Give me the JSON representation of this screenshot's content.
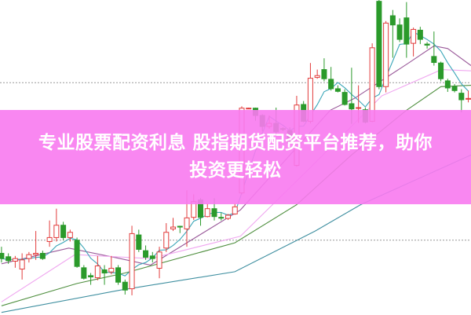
{
  "banner": {
    "line1": "专业股票配资利息 股指期货配资平台推荐，助你",
    "line2": "投资更轻松"
  },
  "chart_data": {
    "type": "candlestick",
    "title": "",
    "xlabel": "",
    "ylabel": "",
    "ylim": [
      0,
      120
    ],
    "grid": true,
    "gridlines": [
      88.5,
      28.5
    ],
    "colors": {
      "up": "#e23c3c",
      "down": "#2b9a2b",
      "ma5": "#3aa6b8",
      "ma10": "#9a5a9a",
      "ma20": "#f0a8f0",
      "ma30": "#4f8f3f",
      "ma60": "#3f8fa0",
      "banner": "#f87af0"
    },
    "candles": [
      [
        23.5,
        26,
        20,
        21.5
      ],
      [
        22.2,
        23.5,
        19.5,
        20.7
      ],
      [
        20.5,
        22.5,
        18,
        21.5
      ],
      [
        17.5,
        23.5,
        13.5,
        21
      ],
      [
        21.5,
        24,
        20,
        23
      ],
      [
        23,
        32,
        21,
        23.5
      ],
      [
        23.5,
        24.5,
        21,
        21.5
      ],
      [
        28,
        36,
        26,
        29.5
      ],
      [
        29.5,
        40.5,
        28,
        34.2
      ],
      [
        34.2,
        35.5,
        28.5,
        29.5
      ],
      [
        29.5,
        32.5,
        28,
        31.5
      ],
      [
        28.5,
        29.5,
        18,
        18.5
      ],
      [
        18,
        19,
        13.5,
        14
      ],
      [
        15,
        16,
        11.5,
        14.5
      ],
      [
        14.2,
        22.5,
        13.2,
        18.7
      ],
      [
        17.2,
        19,
        11.5,
        16
      ],
      [
        16.4,
        22.5,
        15.5,
        17.8
      ],
      [
        18,
        19,
        11.5,
        12.5
      ],
      [
        12.5,
        13.5,
        7.8,
        9.5
      ],
      [
        10,
        34,
        7.5,
        31
      ],
      [
        30.5,
        32.5,
        24,
        25
      ],
      [
        24.5,
        26.5,
        21,
        22
      ],
      [
        22.5,
        24,
        20,
        21.5
      ],
      [
        17.8,
        26,
        14,
        24
      ],
      [
        25.5,
        35,
        24,
        31.5
      ],
      [
        32.8,
        37,
        32,
        33.5
      ],
      [
        33.8,
        34,
        31.2,
        33.5
      ],
      [
        32.8,
        47.5,
        26,
        37
      ],
      [
        37.2,
        46,
        36.2,
        43.2
      ],
      [
        43.8,
        44.5,
        34,
        37.2
      ],
      [
        37.5,
        42.5,
        37.2,
        40.5
      ],
      [
        40.5,
        44.5,
        36,
        37.5
      ],
      [
        37.2,
        39,
        36,
        37
      ],
      [
        36.8,
        38.5,
        36.2,
        38
      ],
      [
        38.5,
        42.5,
        38.2,
        41.2
      ],
      [
        46.5,
        79.5,
        46,
        78.8
      ],
      [
        78.7,
        79,
        78.6,
        78.8
      ],
      [
        78.8,
        79,
        74,
        76
      ],
      [
        76,
        76.5,
        70,
        71.8
      ],
      [
        71.8,
        76,
        71,
        73
      ],
      [
        73,
        79,
        68.5,
        69.8
      ],
      [
        71,
        71.5,
        70,
        70.8
      ],
      [
        70.2,
        71.5,
        64,
        65.5
      ],
      [
        57,
        83.5,
        56.5,
        80
      ],
      [
        80.2,
        81.5,
        73.5,
        73.8
      ],
      [
        73.8,
        96,
        73,
        90.2
      ],
      [
        90.5,
        93.5,
        90,
        91.2
      ],
      [
        93.5,
        97.8,
        89,
        90
      ],
      [
        89.8,
        94.5,
        85.5,
        86.2
      ],
      [
        86.2,
        87.5,
        84.8,
        85.2
      ],
      [
        84.8,
        86,
        79.8,
        80.2
      ],
      [
        80.5,
        94.2,
        72.8,
        78.5
      ],
      [
        78.7,
        87.5,
        73.2,
        79
      ],
      [
        78.2,
        79,
        73,
        73.5
      ],
      [
        73.8,
        103.5,
        73.5,
        101.8
      ],
      [
        119.5,
        120,
        86,
        87
      ],
      [
        87,
        112,
        84.8,
        111.2
      ],
      [
        114,
        116.2,
        98,
        110.5
      ],
      [
        110.5,
        113,
        104,
        105
      ],
      [
        113.2,
        119.2,
        98,
        103.2
      ],
      [
        103.5,
        109.5,
        98.5,
        108.8
      ],
      [
        108.5,
        109.8,
        103.2,
        105
      ],
      [
        103.2,
        104,
        101.5,
        102.8
      ],
      [
        98.5,
        108,
        95,
        96.2
      ],
      [
        96,
        96.5,
        89,
        90
      ],
      [
        89.2,
        90,
        85,
        86.5
      ],
      [
        87,
        88,
        84.8,
        85.5
      ],
      [
        84.5,
        86,
        77.2,
        82
      ],
      [
        82.2,
        85.5,
        81,
        82.5
      ]
    ],
    "moving_averages": {
      "ma10": [
        [
          0,
          19.5
        ],
        [
          9.8,
          25.5
        ],
        [
          17.3,
          21.5
        ],
        [
          21.7,
          19
        ],
        [
          34.8,
          40
        ],
        [
          47.9,
          78
        ],
        [
          51.4,
          82.5
        ],
        [
          59.3,
          96
        ],
        [
          63,
          102.5
        ],
        [
          65,
          101.5
        ],
        [
          68.4,
          95
        ]
      ],
      "ma20": [
        [
          0,
          5
        ],
        [
          10.7,
          23
        ],
        [
          21.7,
          21.5
        ],
        [
          34.8,
          30
        ],
        [
          45.7,
          58
        ],
        [
          55.4,
          83.5
        ],
        [
          64.1,
          93.5
        ],
        [
          68.4,
          93
        ]
      ],
      "ma30": [
        [
          0,
          3.5
        ],
        [
          11,
          12
        ],
        [
          18,
          16
        ],
        [
          34,
          27.5
        ],
        [
          43,
          42
        ],
        [
          51,
          61
        ],
        [
          59,
          78
        ],
        [
          64,
          87
        ],
        [
          68.4,
          87.5
        ]
      ],
      "ma60": [
        [
          0,
          1
        ],
        [
          17.3,
          9.5
        ],
        [
          34,
          16.5
        ],
        [
          45.7,
          32
        ],
        [
          52.3,
          42
        ],
        [
          68.4,
          61
        ]
      ]
    }
  }
}
